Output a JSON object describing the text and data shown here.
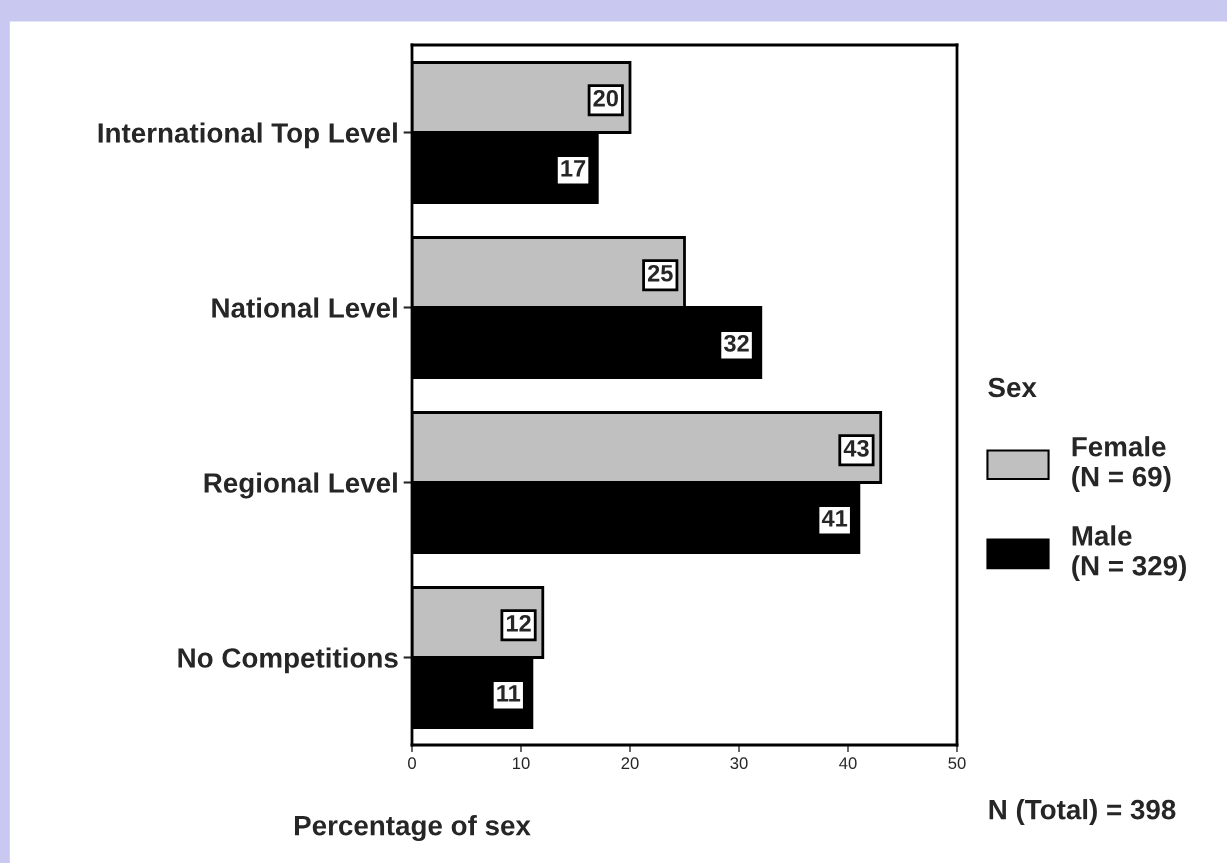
{
  "chart_data": {
    "type": "bar",
    "orientation": "horizontal",
    "categories": [
      "International Top Level",
      "National Level",
      "Regional Level",
      "No Competitions"
    ],
    "series": [
      {
        "name": "Female\n(N = 69)",
        "color": "#c0c0c0",
        "values": [
          20,
          25,
          43,
          12
        ]
      },
      {
        "name": "Male\n(N = 329)",
        "color": "#000000",
        "values": [
          17,
          32,
          41,
          11
        ]
      }
    ],
    "xlim": [
      0,
      50
    ],
    "xticks": [
      0,
      10,
      20,
      30,
      40,
      50
    ],
    "xlabel": "Percentage of sex",
    "legend_title": "Sex",
    "legend": "right",
    "data_labels": true,
    "grid": false,
    "annotations": [
      "N (Total) = 398"
    ]
  }
}
